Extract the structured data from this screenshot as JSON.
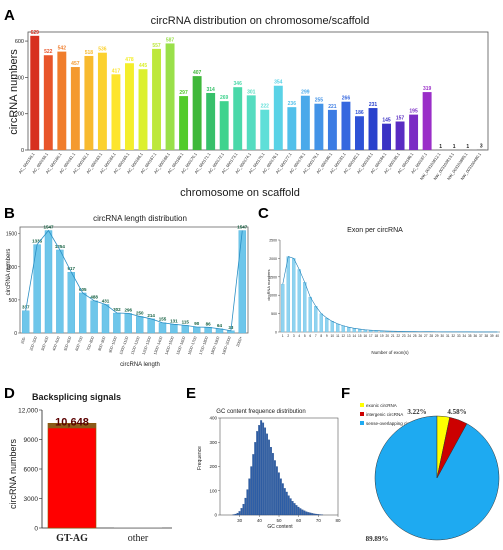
{
  "panels": {
    "A": {
      "letter": "A"
    },
    "B": {
      "letter": "B"
    },
    "C": {
      "letter": "C"
    },
    "D": {
      "letter": "D"
    },
    "E": {
      "letter": "E"
    },
    "F": {
      "letter": "F"
    }
  },
  "chart_data": [
    {
      "id": "A",
      "type": "bar",
      "title": "circRNA distribution on chromosome/scaffold",
      "xlabel": "chromosome on scaffold",
      "ylabel": "circRNA numbers",
      "ylim": [
        0,
        650
      ],
      "yticks": [
        "0",
        "200",
        "400",
        "600"
      ],
      "categories": [
        "AC_000158.1",
        "AC_000159.1",
        "AC_000160.1",
        "AC_000161.1",
        "AC_000162.1",
        "AC_000163.1",
        "AC_000164.1",
        "AC_000165.1",
        "AC_000166.1",
        "AC_000167.1",
        "AC_000168.1",
        "AC_000169.1",
        "AC_000170.1",
        "AC_000171.1",
        "AC_000172.1",
        "AC_000173.1",
        "AC_000174.1",
        "AC_000175.1",
        "AC_000176.1",
        "AC_000177.1",
        "AC_000178.1",
        "AC_000179.1",
        "AC_000180.1",
        "AC_000181.1",
        "AC_000182.1",
        "AC_000183.1",
        "AC_000184.1",
        "AC_000185.1",
        "AC_000186.1",
        "AC_000187.1",
        "NW_003103812.1",
        "NW_003103813.1",
        "NW_003103885.1",
        "NW_003100480.1"
      ],
      "values": [
        629,
        522,
        542,
        457,
        518,
        536,
        417,
        478,
        445,
        557,
        587,
        297,
        407,
        314,
        269,
        346,
        301,
        222,
        354,
        236,
        299,
        255,
        221,
        266,
        186,
        231,
        145,
        157,
        195,
        319,
        1,
        1,
        1,
        3
      ],
      "colors": [
        "#d7301f",
        "#e8552a",
        "#f07d2c",
        "#f49a2f",
        "#f8ba2f",
        "#fbd12f",
        "#fde52e",
        "#f4ee2c",
        "#dcf02e",
        "#bde83b",
        "#9ae04a",
        "#53cb2a",
        "#3fb83a",
        "#37c06a",
        "#3fd38e",
        "#4ad8a9",
        "#55dcc0",
        "#5fdfd8",
        "#59d2e6",
        "#52c0ea",
        "#4aa9ea",
        "#4393e7",
        "#3c7ce3",
        "#3567df",
        "#2e52d6",
        "#2941cc",
        "#3a32c4",
        "#5a2cc2",
        "#7a2bc4",
        "#9a2ec8",
        "#666666",
        "#666666",
        "#666666",
        "#666666"
      ]
    },
    {
      "id": "B",
      "type": "bar",
      "title": "circRNA length distribution",
      "xlabel": "circRNA length",
      "ylabel": "circRNA numbers",
      "ylim": [
        0,
        1600
      ],
      "yticks": [
        "0",
        "500",
        "1000",
        "1500"
      ],
      "categories": [
        "200-",
        "200~300",
        "300~400",
        "400~500",
        "500~600",
        "600~700",
        "700~800",
        "800~900",
        "900~1000",
        "1000~1100",
        "1100~1200",
        "1200~1300",
        "1300~1400",
        "1400~1500",
        "1500~1600",
        "1600~1700",
        "1700~1800",
        "1800~1900",
        "1900~2000",
        "2000+"
      ],
      "values": [
        337,
        1335,
        1547,
        1254,
        917,
        605,
        488,
        431,
        302,
        296,
        250,
        214,
        155,
        131,
        115,
        90,
        86,
        64,
        33,
        1547
      ],
      "value_labels": [
        "337",
        "1335",
        "1547",
        "1254",
        "917",
        "605",
        "488",
        "431",
        "302",
        "296",
        "250",
        "214",
        "155",
        "131",
        "115",
        "90",
        "86",
        "64",
        "33",
        "1547"
      ]
    },
    {
      "id": "C",
      "type": "bar",
      "title": "Exon per circRNA",
      "xlabel": "Number of exon(s)",
      "ylabel": "circRNA numbers",
      "ylim": [
        0,
        2500
      ],
      "yticks": [
        "0",
        "500",
        "1000",
        "1500",
        "2000",
        "2500"
      ],
      "categories": [
        "1",
        "2",
        "3",
        "4",
        "5",
        "6",
        "7",
        "8",
        "9",
        "10",
        "11",
        "12",
        "13",
        "14",
        "15",
        "16",
        "17",
        "18",
        "19",
        "20",
        "21",
        "22",
        "23",
        "24",
        "25",
        "26",
        "27",
        "28",
        "29",
        "30",
        "31",
        "32",
        "33",
        "34",
        "35",
        "36",
        "37",
        "38",
        "39",
        "40"
      ],
      "values": [
        1300,
        2050,
        2000,
        1700,
        1350,
        950,
        700,
        500,
        380,
        290,
        220,
        170,
        130,
        100,
        80,
        60,
        50,
        40,
        32,
        26,
        22,
        18,
        15,
        13,
        11,
        10,
        9,
        8,
        7,
        6,
        6,
        5,
        5,
        4,
        4,
        3,
        3,
        3,
        2,
        2
      ]
    },
    {
      "id": "D",
      "type": "bar",
      "title": "Backsplicing signals",
      "xlabel": "",
      "ylabel": "circRNA numbers",
      "ylim": [
        0,
        12000
      ],
      "yticks": [
        "0",
        "3000",
        "6000",
        "9000",
        "12,000"
      ],
      "categories": [
        "GT-AG",
        "other"
      ],
      "values": [
        10648,
        12
      ],
      "value_labels": [
        "10,648",
        ""
      ],
      "colors": [
        "#ff0000",
        "#ffffff"
      ]
    },
    {
      "id": "E",
      "type": "bar",
      "title": "GC content frequence distribution",
      "xlabel": "GC content",
      "ylabel": "Frequence",
      "xlim": [
        20,
        80
      ],
      "ylim": [
        0,
        400
      ],
      "xticks": [
        "30",
        "40",
        "50",
        "60",
        "70",
        "80"
      ],
      "yticks": [
        "0",
        "100",
        "200",
        "300",
        "400"
      ],
      "bin_centers": [
        27,
        28,
        29,
        30,
        31,
        32,
        33,
        34,
        35,
        36,
        37,
        38,
        39,
        40,
        41,
        42,
        43,
        44,
        45,
        46,
        47,
        48,
        49,
        50,
        51,
        52,
        53,
        54,
        55,
        56,
        57,
        58,
        59,
        60,
        61,
        62,
        63,
        64,
        65,
        66,
        67,
        68,
        69,
        70,
        71,
        72
      ],
      "values": [
        2,
        4,
        8,
        15,
        28,
        45,
        70,
        105,
        150,
        200,
        250,
        300,
        345,
        370,
        390,
        380,
        360,
        335,
        310,
        280,
        255,
        225,
        200,
        175,
        150,
        130,
        110,
        95,
        80,
        68,
        57,
        48,
        40,
        33,
        27,
        22,
        18,
        14,
        11,
        9,
        7,
        5,
        4,
        3,
        2,
        1
      ]
    },
    {
      "id": "F",
      "type": "pie",
      "title": "",
      "legend": [
        "exonic circRNA",
        "intergenic circRNA",
        "sense-overlapping circRNA"
      ],
      "legend_colors": [
        "#ffff00",
        "#cc0000",
        "#1eaaf1"
      ],
      "legend_position": "top",
      "slices": [
        {
          "name": "exonic circRNA",
          "value": 3.22,
          "label": "3.22%",
          "color": "#ffff00"
        },
        {
          "name": "intergenic circRNA",
          "value": 4.58,
          "label": "4.58%",
          "color": "#cc0000"
        },
        {
          "name": "sense-overlapping circRNA",
          "value": 89.89,
          "label": "89.89%",
          "color": "#1eaaf1"
        }
      ]
    }
  ]
}
